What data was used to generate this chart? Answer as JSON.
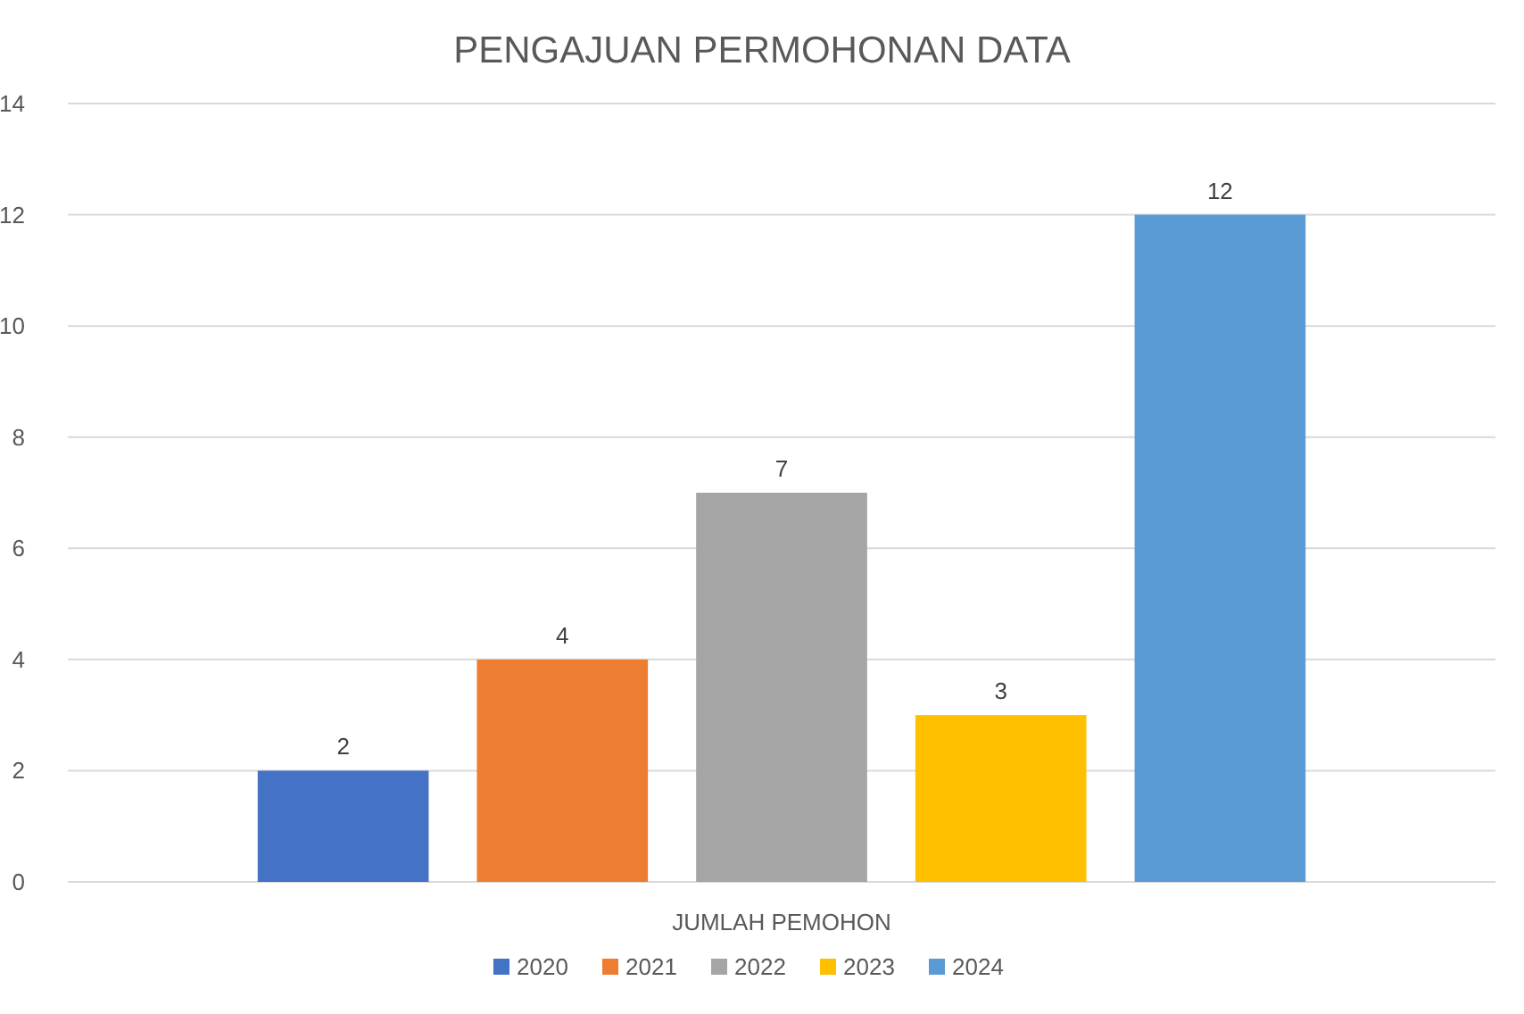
{
  "chart_data": {
    "type": "bar",
    "title": "PENGAJUAN PERMOHONAN DATA",
    "categories": [
      "JUMLAH PEMOHON"
    ],
    "series": [
      {
        "name": "2020",
        "color": "#4472c4",
        "values": [
          2
        ]
      },
      {
        "name": "2021",
        "color": "#ed7d31",
        "values": [
          4
        ]
      },
      {
        "name": "2022",
        "color": "#a5a5a5",
        "values": [
          7
        ]
      },
      {
        "name": "2023",
        "color": "#ffc000",
        "values": [
          3
        ]
      },
      {
        "name": "2024",
        "color": "#5b9bd5",
        "values": [
          12
        ]
      }
    ],
    "ylim": [
      0,
      14
    ],
    "yticks": [
      0,
      2,
      4,
      6,
      8,
      10,
      12,
      14
    ],
    "grid": "y",
    "legend": "bottom",
    "data_labels": true
  }
}
